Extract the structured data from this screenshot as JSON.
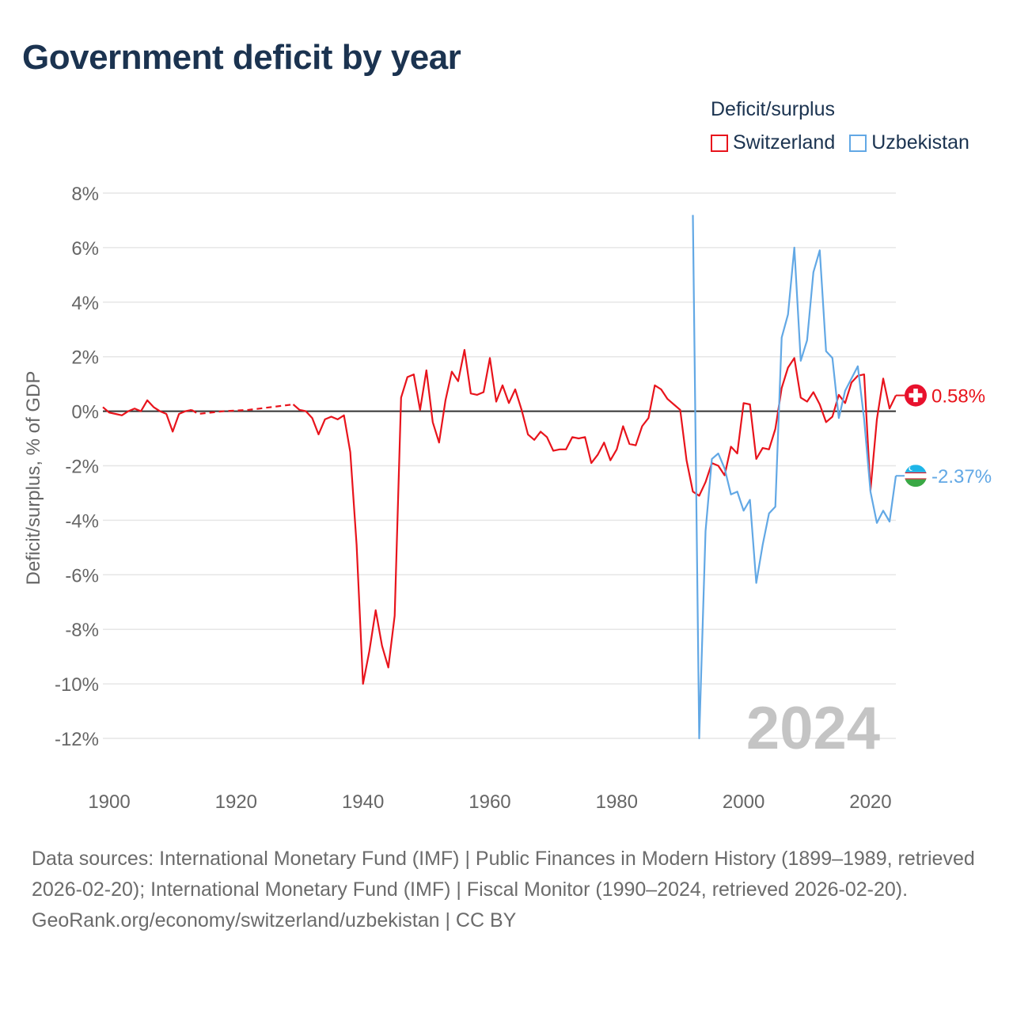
{
  "title": "Government deficit by year",
  "legend": {
    "title": "Deficit/surplus",
    "items": [
      {
        "label": "Switzerland",
        "color": "#e8141c"
      },
      {
        "label": "Uzbekistan",
        "color": "#62a8e5"
      }
    ]
  },
  "year_watermark": "2024",
  "footer": {
    "sources": "Data sources: International Monetary Fund (IMF) | Public Finances in Modern History (1899–1989, retrieved 2026-02-20); International Monetary Fund (IMF) | Fiscal Monitor (1990–2024, retrieved 2026-02-20).",
    "credit": "GeoRank.org/economy/switzerland/uzbekistan | CC BY"
  },
  "chart_data": {
    "type": "line",
    "title": "Government deficit by year",
    "xlabel": "",
    "ylabel": "Deficit/surplus, % of GDP",
    "xlim": [
      1899,
      2024
    ],
    "ylim": [
      -12,
      8
    ],
    "x_ticks": [
      {
        "value": 1900,
        "label": "1900"
      },
      {
        "value": 1920,
        "label": "1920"
      },
      {
        "value": 1940,
        "label": "1940"
      },
      {
        "value": 1960,
        "label": "1960"
      },
      {
        "value": 1980,
        "label": "1980"
      },
      {
        "value": 2000,
        "label": "2000"
      },
      {
        "value": 2020,
        "label": "2020"
      }
    ],
    "y_ticks": [
      {
        "value": 8,
        "label": "8%"
      },
      {
        "value": 6,
        "label": "6%"
      },
      {
        "value": 4,
        "label": "4%"
      },
      {
        "value": 2,
        "label": "2%"
      },
      {
        "value": 0,
        "label": "0%"
      },
      {
        "value": -2,
        "label": "-2%"
      },
      {
        "value": -4,
        "label": "-4%"
      },
      {
        "value": -6,
        "label": "-6%"
      },
      {
        "value": -8,
        "label": "-8%"
      },
      {
        "value": -10,
        "label": "-10%"
      },
      {
        "value": -12,
        "label": "-12%"
      }
    ],
    "grid": true,
    "legend_position": "top-right",
    "series": [
      {
        "name": "Switzerland",
        "color": "#e8141c",
        "end_label": "0.58%",
        "flag_icon": "switzerland-flag-icon",
        "segments": [
          {
            "style": "solid",
            "points": [
              [
                1899,
                0.15
              ],
              [
                1900,
                -0.05
              ],
              [
                1901,
                -0.1
              ],
              [
                1902,
                -0.15
              ],
              [
                1903,
                0.0
              ],
              [
                1904,
                0.1
              ],
              [
                1905,
                0.0
              ],
              [
                1906,
                0.4
              ],
              [
                1907,
                0.15
              ],
              [
                1908,
                0.0
              ],
              [
                1909,
                -0.1
              ],
              [
                1910,
                -0.75
              ],
              [
                1911,
                -0.1
              ],
              [
                1912,
                0.0
              ],
              [
                1913,
                0.05
              ]
            ]
          },
          {
            "style": "dashed",
            "points": [
              [
                1913,
                0.05
              ],
              [
                1914,
                -0.1
              ],
              [
                1918,
                0.0
              ],
              [
                1922,
                0.05
              ],
              [
                1929,
                0.25
              ]
            ]
          },
          {
            "style": "solid",
            "points": [
              [
                1929,
                0.25
              ],
              [
                1930,
                0.05
              ],
              [
                1931,
                0.0
              ],
              [
                1932,
                -0.25
              ],
              [
                1933,
                -0.85
              ],
              [
                1934,
                -0.3
              ],
              [
                1935,
                -0.2
              ],
              [
                1936,
                -0.3
              ],
              [
                1937,
                -0.15
              ],
              [
                1938,
                -1.5
              ],
              [
                1939,
                -4.9
              ],
              [
                1940,
                -10.0
              ],
              [
                1941,
                -8.8
              ],
              [
                1942,
                -7.3
              ],
              [
                1943,
                -8.6
              ],
              [
                1944,
                -9.4
              ],
              [
                1945,
                -7.5
              ],
              [
                1946,
                0.5
              ],
              [
                1947,
                1.25
              ],
              [
                1948,
                1.35
              ],
              [
                1949,
                0.05
              ],
              [
                1950,
                1.5
              ],
              [
                1951,
                -0.4
              ],
              [
                1952,
                -1.15
              ],
              [
                1953,
                0.4
              ],
              [
                1954,
                1.45
              ],
              [
                1955,
                1.1
              ],
              [
                1956,
                2.25
              ],
              [
                1957,
                0.65
              ],
              [
                1958,
                0.6
              ],
              [
                1959,
                0.7
              ],
              [
                1960,
                1.95
              ],
              [
                1961,
                0.35
              ],
              [
                1962,
                0.95
              ],
              [
                1963,
                0.3
              ],
              [
                1964,
                0.8
              ],
              [
                1965,
                0.05
              ],
              [
                1966,
                -0.85
              ],
              [
                1967,
                -1.05
              ],
              [
                1968,
                -0.75
              ],
              [
                1969,
                -0.95
              ],
              [
                1970,
                -1.45
              ],
              [
                1971,
                -1.4
              ],
              [
                1972,
                -1.4
              ],
              [
                1973,
                -0.95
              ],
              [
                1974,
                -1.0
              ],
              [
                1975,
                -0.95
              ],
              [
                1976,
                -1.9
              ],
              [
                1977,
                -1.6
              ],
              [
                1978,
                -1.15
              ],
              [
                1979,
                -1.8
              ],
              [
                1980,
                -1.4
              ],
              [
                1981,
                -0.55
              ],
              [
                1982,
                -1.2
              ],
              [
                1983,
                -1.25
              ],
              [
                1984,
                -0.55
              ],
              [
                1985,
                -0.25
              ],
              [
                1986,
                0.95
              ],
              [
                1987,
                0.8
              ],
              [
                1988,
                0.45
              ],
              [
                1989,
                0.25
              ],
              [
                1990,
                0.05
              ],
              [
                1991,
                -1.8
              ],
              [
                1992,
                -2.95
              ],
              [
                1993,
                -3.1
              ],
              [
                1994,
                -2.6
              ],
              [
                1995,
                -1.9
              ],
              [
                1996,
                -2.0
              ],
              [
                1997,
                -2.35
              ],
              [
                1998,
                -1.3
              ],
              [
                1999,
                -1.55
              ],
              [
                2000,
                0.3
              ],
              [
                2001,
                0.25
              ],
              [
                2002,
                -1.75
              ],
              [
                2003,
                -1.35
              ],
              [
                2004,
                -1.4
              ],
              [
                2005,
                -0.65
              ],
              [
                2006,
                0.85
              ],
              [
                2007,
                1.6
              ],
              [
                2008,
                1.95
              ],
              [
                2009,
                0.5
              ],
              [
                2010,
                0.35
              ],
              [
                2011,
                0.7
              ],
              [
                2012,
                0.25
              ],
              [
                2013,
                -0.4
              ],
              [
                2014,
                -0.2
              ],
              [
                2015,
                0.6
              ],
              [
                2016,
                0.3
              ],
              [
                2017,
                1.05
              ],
              [
                2018,
                1.3
              ],
              [
                2019,
                1.35
              ],
              [
                2020,
                -2.9
              ],
              [
                2021,
                -0.3
              ],
              [
                2022,
                1.2
              ],
              [
                2023,
                0.1
              ],
              [
                2024,
                0.58
              ]
            ]
          }
        ]
      },
      {
        "name": "Uzbekistan",
        "color": "#62a8e5",
        "end_label": "-2.37%",
        "flag_icon": "uzbekistan-flag-icon",
        "segments": [
          {
            "style": "solid",
            "points": [
              [
                1992,
                7.2
              ],
              [
                1993,
                -12.0
              ],
              [
                1994,
                -4.4
              ],
              [
                1995,
                -1.75
              ],
              [
                1996,
                -1.55
              ],
              [
                1997,
                -2.1
              ],
              [
                1998,
                -3.05
              ],
              [
                1999,
                -2.95
              ],
              [
                2000,
                -3.65
              ],
              [
                2001,
                -3.25
              ],
              [
                2002,
                -6.3
              ],
              [
                2003,
                -4.9
              ],
              [
                2004,
                -3.75
              ],
              [
                2005,
                -3.5
              ],
              [
                2006,
                2.7
              ],
              [
                2007,
                3.55
              ],
              [
                2008,
                6.0
              ],
              [
                2009,
                1.85
              ],
              [
                2010,
                2.6
              ],
              [
                2011,
                5.1
              ],
              [
                2012,
                5.9
              ],
              [
                2013,
                2.2
              ],
              [
                2014,
                1.95
              ],
              [
                2015,
                -0.25
              ],
              [
                2016,
                0.75
              ],
              [
                2017,
                1.2
              ],
              [
                2018,
                1.65
              ],
              [
                2019,
                -0.3
              ],
              [
                2020,
                -2.95
              ],
              [
                2021,
                -4.1
              ],
              [
                2022,
                -3.65
              ],
              [
                2023,
                -4.05
              ],
              [
                2024,
                -2.37
              ]
            ]
          }
        ]
      }
    ]
  }
}
